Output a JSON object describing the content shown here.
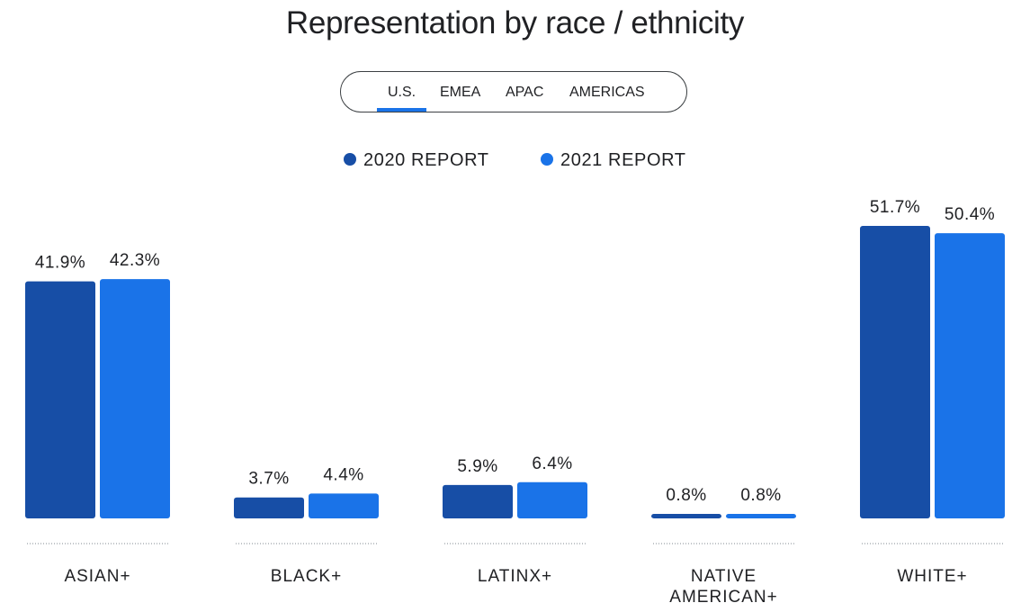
{
  "title": "Representation by race / ethnicity",
  "tabs": [
    {
      "label": "U.S.",
      "active": true
    },
    {
      "label": "EMEA",
      "active": false
    },
    {
      "label": "APAC",
      "active": false
    },
    {
      "label": "AMERICAS",
      "active": false
    }
  ],
  "legend": [
    {
      "label": "2020 REPORT",
      "color": "#174ea6"
    },
    {
      "label": "2021 REPORT",
      "color": "#1a73e8"
    }
  ],
  "chart_data": {
    "type": "bar",
    "categories": [
      {
        "lines": [
          "ASIAN+"
        ]
      },
      {
        "lines": [
          "BLACK+"
        ]
      },
      {
        "lines": [
          "LATINX+"
        ]
      },
      {
        "lines": [
          "NATIVE",
          "AMERICAN+"
        ]
      },
      {
        "lines": [
          "WHITE+"
        ]
      }
    ],
    "series": [
      {
        "name": "2020 REPORT",
        "color": "#174ea6",
        "values": [
          41.9,
          3.7,
          5.9,
          0.8,
          51.7
        ],
        "labels": [
          "41.9%",
          "3.7%",
          "5.9%",
          "0.8%",
          "51.7%"
        ]
      },
      {
        "name": "2021 REPORT",
        "color": "#1a73e8",
        "values": [
          42.3,
          4.4,
          6.4,
          0.8,
          50.4
        ],
        "labels": [
          "42.3%",
          "4.4%",
          "6.4%",
          "0.8%",
          "50.4%"
        ]
      }
    ],
    "ylim": [
      0,
      51.7
    ],
    "grid": false,
    "legend_position": "top-center"
  }
}
